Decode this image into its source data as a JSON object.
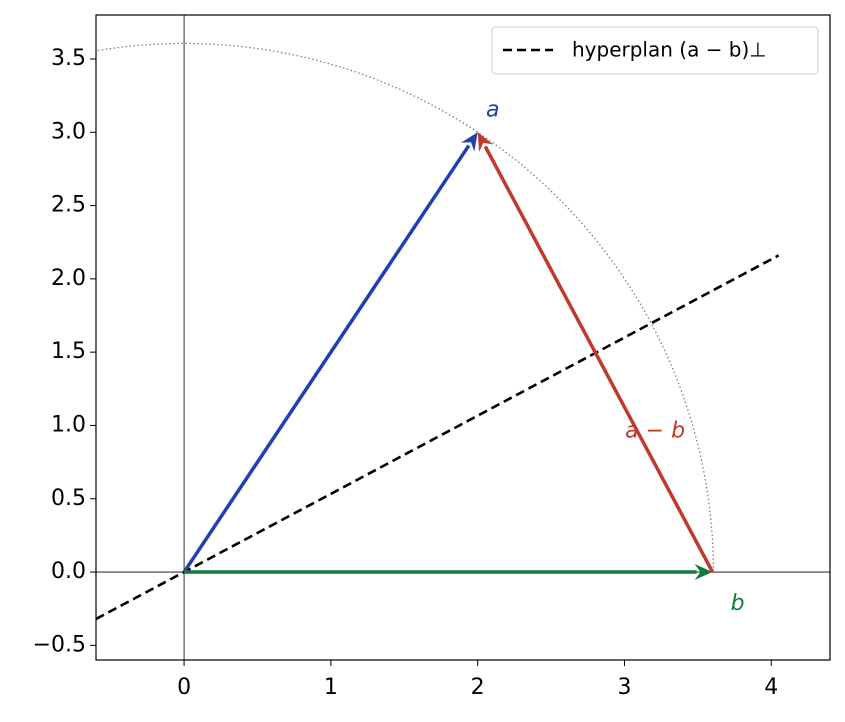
{
  "chart_data": {
    "type": "vectors",
    "xlim": [
      -0.6,
      4.4
    ],
    "ylim": [
      -0.6,
      3.8
    ],
    "xticks": [
      0,
      1,
      2,
      3,
      4
    ],
    "yticks": [
      {
        "value": -0.5,
        "label": "−0.5"
      },
      {
        "value": 0,
        "label": "0.0"
      },
      {
        "value": 0.5,
        "label": "0.5"
      },
      {
        "value": 1,
        "label": "1.0"
      },
      {
        "value": 1.5,
        "label": "1.5"
      },
      {
        "value": 2,
        "label": "2.0"
      },
      {
        "value": 2.5,
        "label": "2.5"
      },
      {
        "value": 3,
        "label": "3.0"
      },
      {
        "value": 3.5,
        "label": "3.5"
      }
    ],
    "vectors": [
      {
        "label": "a",
        "color": "#2040b0",
        "x0": 0,
        "y0": 0,
        "x1": 2,
        "y1": 3
      },
      {
        "label": "b",
        "color": "#147a3a",
        "x0": 0,
        "y0": 0,
        "x1": 3.6,
        "y1": 0
      },
      {
        "label": "a − b",
        "color": "#c03a2b",
        "x0": 3.6,
        "y0": 0,
        "x1": 2,
        "y1": 3
      }
    ],
    "series": [
      {
        "name": "hyperplan (a − b)⊥",
        "color": "#000000",
        "x": [
          -0.6,
          4.05
        ],
        "values": [
          -0.32,
          2.16
        ]
      }
    ],
    "circle_radius": 3.606,
    "legend": "upper right"
  }
}
